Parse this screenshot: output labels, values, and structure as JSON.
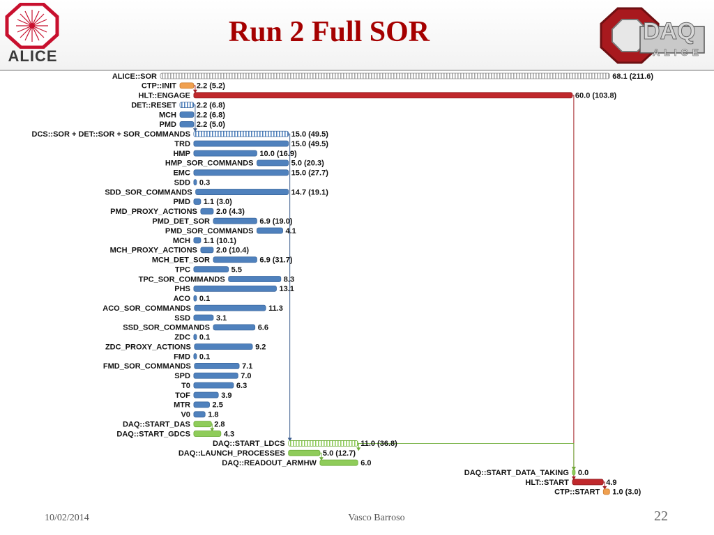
{
  "header": {
    "title": "Run 2 Full SOR",
    "left_logo_text": "ALICE",
    "right_logo_text": "DAQ",
    "right_logo_sub": "ALICE"
  },
  "footer": {
    "date": "10/02/2014",
    "author": "Vasco Barroso",
    "page": "22"
  },
  "colors": {
    "blue": "#4f81bd",
    "red": "#c0282c",
    "orange": "#f0a050",
    "green": "#8fcc5a",
    "gray": "#a6a6a6",
    "connector_blue": "#3e5f8f",
    "connector_red": "#a21f24",
    "connector_green": "#6fae3a"
  },
  "chart_data": {
    "type": "gantt",
    "scale_max": 68.1,
    "tasks": [
      {
        "label": "ALICE::SOR",
        "start": 0,
        "duration": 68.1,
        "value_label": "68.1 (211.6)",
        "color": "gray",
        "style": "hatched"
      },
      {
        "label": "CTP::INIT",
        "start": 0,
        "duration": 2.2,
        "value_label": "2.2 (5.2)",
        "color": "orange",
        "style": "solid"
      },
      {
        "label": "HLT::ENGAGE",
        "start": 2.2,
        "duration": 60.0,
        "value_label": "60.0 (103.8)",
        "color": "red",
        "style": "solid"
      },
      {
        "label": "DET::RESET",
        "start": 0,
        "duration": 2.2,
        "value_label": "2.2 (6.8)",
        "color": "blue",
        "style": "hatched"
      },
      {
        "label": "MCH",
        "start": 0,
        "duration": 2.2,
        "value_label": "2.2 (6.8)",
        "color": "blue",
        "style": "solid"
      },
      {
        "label": "PMD",
        "start": 0,
        "duration": 2.2,
        "value_label": "2.2 (5.0)",
        "color": "blue",
        "style": "solid"
      },
      {
        "label": "DCS::SOR + DET::SOR + SOR_COMMANDS",
        "start": 2.2,
        "duration": 15.0,
        "value_label": "15.0 (49.5)",
        "color": "blue",
        "style": "hatched"
      },
      {
        "label": "TRD",
        "start": 2.2,
        "duration": 15.0,
        "value_label": "15.0 (49.5)",
        "color": "blue",
        "style": "solid"
      },
      {
        "label": "HMP",
        "start": 2.2,
        "duration": 10.0,
        "value_label": "10.0 (16.9)",
        "color": "blue",
        "style": "solid"
      },
      {
        "label": "HMP_SOR_COMMANDS",
        "start": 12.2,
        "duration": 5.0,
        "value_label": "5.0 (20.3)",
        "color": "blue",
        "style": "solid"
      },
      {
        "label": "EMC",
        "start": 2.2,
        "duration": 15.0,
        "value_label": "15.0 (27.7)",
        "color": "blue",
        "style": "solid"
      },
      {
        "label": "SDD",
        "start": 2.2,
        "duration": 0.3,
        "value_label": "0.3",
        "color": "blue",
        "style": "solid"
      },
      {
        "label": "SDD_SOR_COMMANDS",
        "start": 2.5,
        "duration": 14.7,
        "value_label": "14.7 (19.1)",
        "color": "blue",
        "style": "solid"
      },
      {
        "label": "PMD",
        "start": 2.2,
        "duration": 1.1,
        "value_label": "1.1 (3.0)",
        "color": "blue",
        "style": "solid"
      },
      {
        "label": "PMD_PROXY_ACTIONS",
        "start": 3.3,
        "duration": 2.0,
        "value_label": "2.0 (4.3)",
        "color": "blue",
        "style": "solid"
      },
      {
        "label": "PMD_DET_SOR",
        "start": 5.3,
        "duration": 6.9,
        "value_label": "6.9 (19.0)",
        "color": "blue",
        "style": "solid"
      },
      {
        "label": "PMD_SOR_COMMANDS",
        "start": 12.2,
        "duration": 4.1,
        "value_label": "4.1",
        "color": "blue",
        "style": "solid"
      },
      {
        "label": "MCH",
        "start": 2.2,
        "duration": 1.1,
        "value_label": "1.1 (10.1)",
        "color": "blue",
        "style": "solid"
      },
      {
        "label": "MCH_PROXY_ACTIONS",
        "start": 3.3,
        "duration": 2.0,
        "value_label": "2.0 (10.4)",
        "color": "blue",
        "style": "solid"
      },
      {
        "label": "MCH_DET_SOR",
        "start": 5.3,
        "duration": 6.9,
        "value_label": "6.9 (31.7)",
        "color": "blue",
        "style": "solid"
      },
      {
        "label": "TPC",
        "start": 2.2,
        "duration": 5.5,
        "value_label": "5.5",
        "color": "blue",
        "style": "solid"
      },
      {
        "label": "TPC_SOR_COMMANDS",
        "start": 7.7,
        "duration": 8.3,
        "value_label": "8.3",
        "color": "blue",
        "style": "solid"
      },
      {
        "label": "PHS",
        "start": 2.2,
        "duration": 13.1,
        "value_label": "13.1",
        "color": "blue",
        "style": "solid"
      },
      {
        "label": "ACO",
        "start": 2.2,
        "duration": 0.1,
        "value_label": "0.1",
        "color": "blue",
        "style": "solid"
      },
      {
        "label": "ACO_SOR_COMMANDS",
        "start": 2.3,
        "duration": 11.3,
        "value_label": "11.3",
        "color": "blue",
        "style": "solid"
      },
      {
        "label": "SSD",
        "start": 2.2,
        "duration": 3.1,
        "value_label": "3.1",
        "color": "blue",
        "style": "solid"
      },
      {
        "label": "SSD_SOR_COMMANDS",
        "start": 5.3,
        "duration": 6.6,
        "value_label": "6.6",
        "color": "blue",
        "style": "solid"
      },
      {
        "label": "ZDC",
        "start": 2.2,
        "duration": 0.1,
        "value_label": "0.1",
        "color": "blue",
        "style": "solid"
      },
      {
        "label": "ZDC_PROXY_ACTIONS",
        "start": 2.3,
        "duration": 9.2,
        "value_label": "9.2",
        "color": "blue",
        "style": "solid"
      },
      {
        "label": "FMD",
        "start": 2.2,
        "duration": 0.1,
        "value_label": "0.1",
        "color": "blue",
        "style": "solid"
      },
      {
        "label": "FMD_SOR_COMMANDS",
        "start": 2.3,
        "duration": 7.1,
        "value_label": "7.1",
        "color": "blue",
        "style": "solid"
      },
      {
        "label": "SPD",
        "start": 2.2,
        "duration": 7.0,
        "value_label": "7.0",
        "color": "blue",
        "style": "solid"
      },
      {
        "label": "T0",
        "start": 2.2,
        "duration": 6.3,
        "value_label": "6.3",
        "color": "blue",
        "style": "solid"
      },
      {
        "label": "TOF",
        "start": 2.2,
        "duration": 3.9,
        "value_label": "3.9",
        "color": "blue",
        "style": "solid"
      },
      {
        "label": "MTR",
        "start": 2.2,
        "duration": 2.5,
        "value_label": "2.5",
        "color": "blue",
        "style": "solid"
      },
      {
        "label": "V0",
        "start": 2.2,
        "duration": 1.8,
        "value_label": "1.8",
        "color": "blue",
        "style": "solid"
      },
      {
        "label": "DAQ::START_DAS",
        "start": 2.2,
        "duration": 2.8,
        "value_label": "2.8",
        "color": "green",
        "style": "solid"
      },
      {
        "label": "DAQ::START_GDCS",
        "start": 2.2,
        "duration": 4.3,
        "value_label": "4.3",
        "color": "green",
        "style": "solid"
      },
      {
        "label": "DAQ::START_LDCS",
        "start": 17.2,
        "duration": 11.0,
        "value_label": "11.0 (36.8)",
        "color": "green",
        "style": "hatched"
      },
      {
        "label": "DAQ::LAUNCH_PROCESSES",
        "start": 17.2,
        "duration": 5.0,
        "value_label": "5.0 (12.7)",
        "color": "green",
        "style": "solid"
      },
      {
        "label": "DAQ::READOUT_ARMHW",
        "start": 22.2,
        "duration": 6.0,
        "value_label": "6.0",
        "color": "green",
        "style": "solid"
      },
      {
        "label": "DAQ::START_DATA_TAKING",
        "start": 62.2,
        "duration": 0.0,
        "value_label": "0.0",
        "color": "green",
        "style": "solid"
      },
      {
        "label": "HLT::START",
        "start": 62.2,
        "duration": 4.9,
        "value_label": "4.9",
        "color": "red",
        "style": "solid"
      },
      {
        "label": "CTP::START",
        "start": 67.1,
        "duration": 1.0,
        "value_label": "1.0 (3.0)",
        "color": "orange",
        "style": "solid"
      }
    ],
    "dependencies": [
      {
        "from": 1,
        "to": 2,
        "color": "connector_red"
      },
      {
        "from": 3,
        "to": 6,
        "color": "connector_blue"
      },
      {
        "from": 6,
        "to": 38,
        "color": "connector_blue"
      },
      {
        "from": 2,
        "to": 41,
        "color": "connector_red"
      },
      {
        "from": 38,
        "to": 41,
        "color": "connector_green"
      },
      {
        "from": 41,
        "to": 42,
        "color": "connector_red"
      },
      {
        "from": 42,
        "to": 43,
        "color": "connector_red"
      },
      {
        "from": 36,
        "to": 37,
        "color": "connector_green"
      },
      {
        "from": 38,
        "to": 39,
        "color": "connector_green"
      },
      {
        "from": 39,
        "to": 40,
        "color": "connector_green"
      }
    ]
  }
}
